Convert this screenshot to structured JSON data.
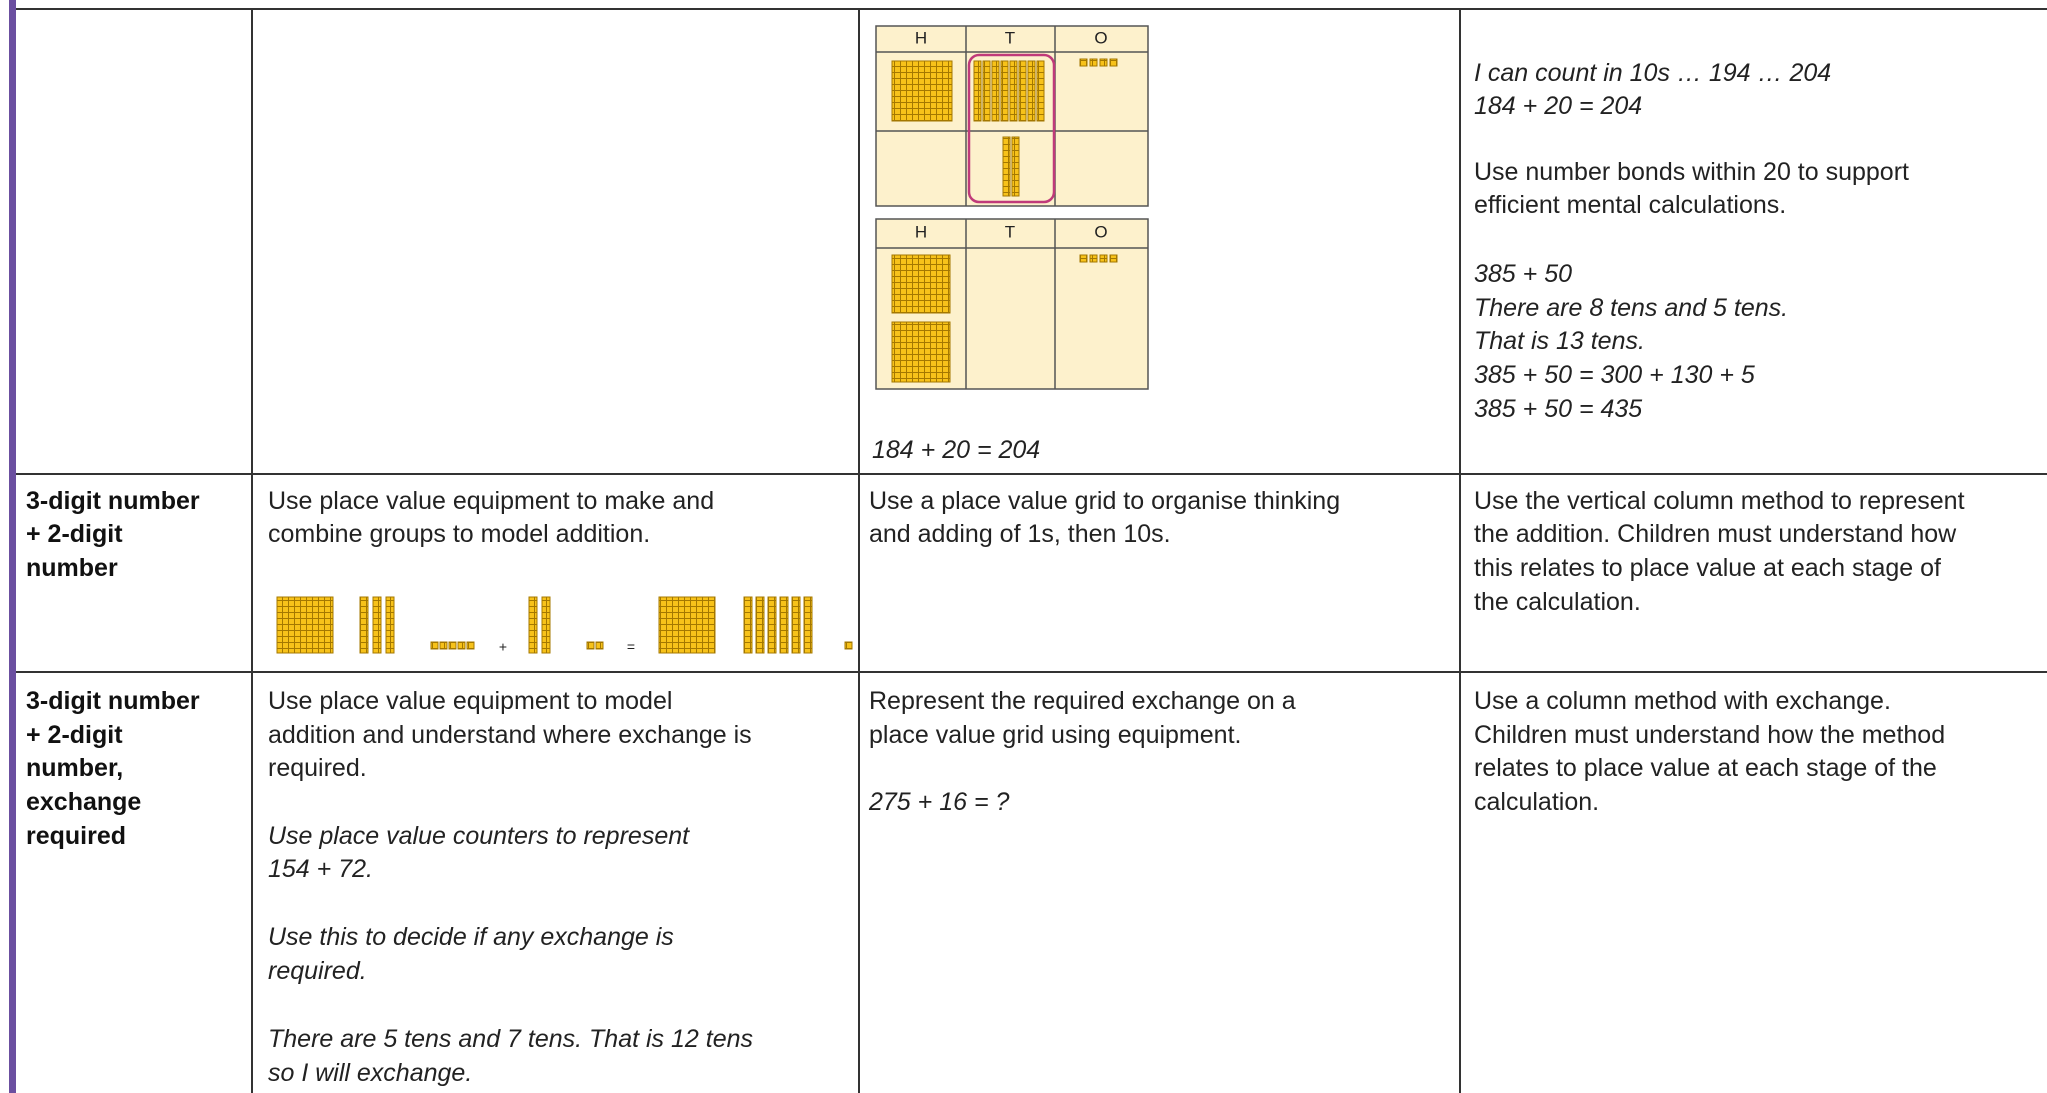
{
  "table": {
    "rows": [
      {
        "pictorial": {
          "grids": [
            {
              "headers": [
                "H",
                "T",
                "O"
              ]
            },
            {
              "headers": [
                "H",
                "T",
                "O"
              ]
            }
          ],
          "caption": "184 + 20 = 204"
        },
        "abstract": [
          [
            "I can count in 10s … 194 … 204",
            "184 + 20 = 204"
          ],
          [
            "Use number bonds within 20 to support",
            "efficient mental calculations."
          ],
          [
            "385 + 50",
            "There are 8 tens and 5 tens.",
            "That is 13 tens.",
            "385 + 50 = 300 + 130 + 5",
            "385 + 50 = 435"
          ]
        ]
      },
      {
        "heading": [
          "3-digit number",
          "+ 2-digit",
          "number"
        ],
        "concrete": {
          "text": [
            "Use place value equipment to make and",
            "combine groups to model addition."
          ],
          "signs": [
            "+",
            "="
          ]
        },
        "pictorial": [
          "Use a place value grid to organise thinking",
          "and adding of 1s, then 10s."
        ],
        "abstract": [
          "Use the vertical column method to represent",
          "the addition. Children must understand how",
          "this relates to place value at each stage of",
          "the calculation."
        ]
      },
      {
        "heading": [
          "3-digit number",
          "+ 2-digit",
          "number,",
          "exchange",
          "required"
        ],
        "concrete": [
          [
            "Use place value equipment to model",
            "addition and understand where exchange is",
            "required."
          ],
          [
            "Use place value counters to represent",
            "154 + 72."
          ],
          [
            "Use this to decide if any exchange is",
            "required."
          ],
          [
            "There are 5 tens and 7 tens. That is 12 tens",
            "so I will exchange."
          ]
        ],
        "pictorial": [
          [
            "Represent the required exchange on a",
            "place value grid using equipment."
          ],
          [
            "275 + 16 = ?"
          ]
        ],
        "abstract": [
          "Use a column method with exchange.",
          "Children must understand how the method",
          "relates to place value at each stage of the",
          "calculation."
        ]
      }
    ]
  }
}
